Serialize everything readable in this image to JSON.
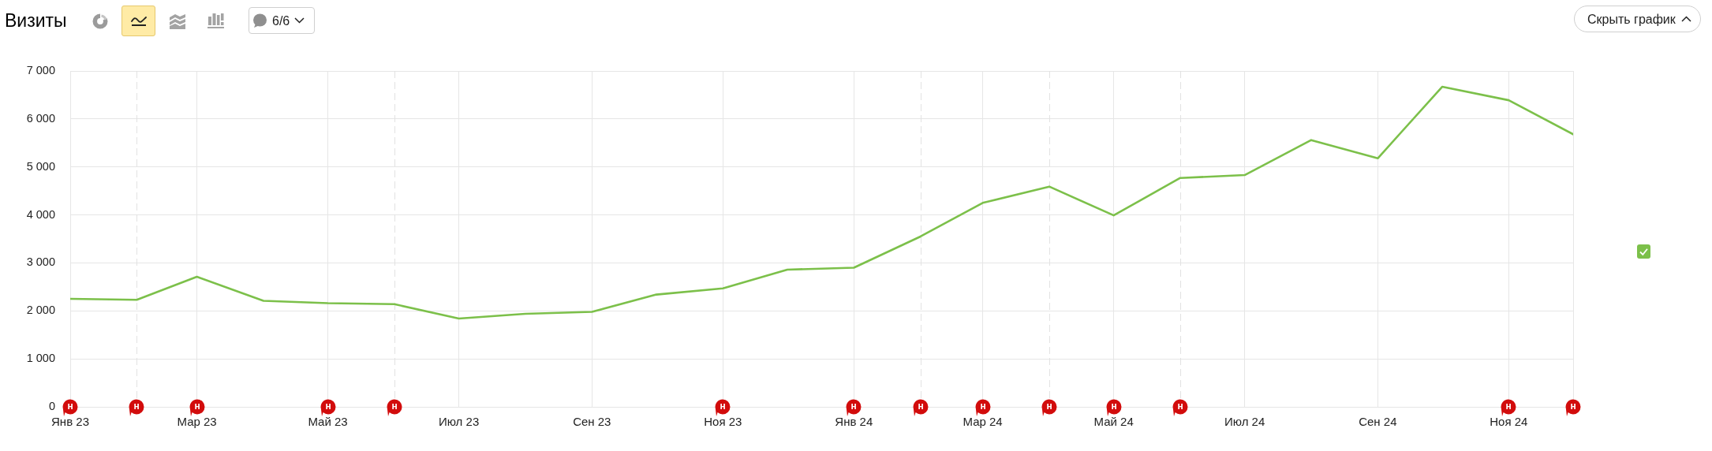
{
  "chart_data": {
    "type": "line",
    "title": "Визиты",
    "x": [
      "2023-01",
      "2023-02",
      "2023-03",
      "2023-04",
      "2023-05",
      "2023-06",
      "2023-07",
      "2023-08",
      "2023-09",
      "2023-10",
      "2023-11",
      "2023-12",
      "2024-01",
      "2024-02",
      "2024-03",
      "2024-04",
      "2024-05",
      "2024-06",
      "2024-07",
      "2024-08",
      "2024-09",
      "2024-10",
      "2024-11",
      "2024-12"
    ],
    "series": [
      {
        "color": "#7cc04a",
        "values": [
          2250,
          2230,
          2710,
          2210,
          2160,
          2140,
          1840,
          1940,
          1980,
          2340,
          2470,
          2860,
          2900,
          3550,
          4250,
          4590,
          3990,
          4770,
          4830,
          5560,
          5180,
          6670,
          6390,
          5680
        ]
      }
    ],
    "xlim": [
      "2023-01",
      "2024-12"
    ],
    "xticks": [
      {
        "value": "2023-01",
        "label": "Янв 23"
      },
      {
        "value": "2023-03",
        "label": "Мар 23"
      },
      {
        "value": "2023-05",
        "label": "Май 23"
      },
      {
        "value": "2023-07",
        "label": "Июл 23"
      },
      {
        "value": "2023-09",
        "label": "Сен 23"
      },
      {
        "value": "2023-11",
        "label": "Ноя 23"
      },
      {
        "value": "2024-01",
        "label": "Янв 24"
      },
      {
        "value": "2024-03",
        "label": "Мар 24"
      },
      {
        "value": "2024-05",
        "label": "Май 24"
      },
      {
        "value": "2024-07",
        "label": "Июл 24"
      },
      {
        "value": "2024-09",
        "label": "Сен 24"
      },
      {
        "value": "2024-11",
        "label": "Ноя 24"
      }
    ],
    "ylim": [
      0,
      7000
    ],
    "yticks": [
      0,
      {
        "value": 1000,
        "label": "1 000"
      },
      {
        "value": 2000,
        "label": "2 000"
      },
      {
        "value": 3000,
        "label": "3 000"
      },
      {
        "value": 4000,
        "label": "4 000"
      },
      {
        "value": 5000,
        "label": "5 000"
      },
      {
        "value": 6000,
        "label": "6 000"
      },
      {
        "value": 7000,
        "label": "7 000"
      }
    ],
    "grid": true,
    "marker": "none",
    "line_style": "solid",
    "ref_lines": [
      {
        "axis": "x",
        "value": "2023-02",
        "line_style": "dashed",
        "color": "#e2e2e2"
      },
      {
        "axis": "x",
        "value": "2023-06",
        "line_style": "dashed",
        "color": "#e2e2e2"
      },
      {
        "axis": "x",
        "value": "2024-02",
        "line_style": "dashed",
        "color": "#e2e2e2"
      },
      {
        "axis": "x",
        "value": "2024-04",
        "line_style": "dashed",
        "color": "#e2e2e2"
      },
      {
        "axis": "x",
        "value": "2024-06",
        "line_style": "dashed",
        "color": "#e2e2e2"
      }
    ],
    "annotations": [
      "6/6",
      "Скрыть график",
      {
        "text": "н",
        "x": "2023-01",
        "y": 0
      },
      {
        "text": "н",
        "x": "2023-02",
        "y": 0
      },
      {
        "text": "н",
        "x": "2023-03",
        "y": 0
      },
      {
        "text": "н",
        "x": "2023-05",
        "y": 0
      },
      {
        "text": "н",
        "x": "2023-06",
        "y": 0
      },
      {
        "text": "н",
        "x": "2023-11",
        "y": 0
      },
      {
        "text": "н",
        "x": "2024-01",
        "y": 0
      },
      {
        "text": "н",
        "x": "2024-02",
        "y": 0
      },
      {
        "text": "н",
        "x": "2024-03",
        "y": 0
      },
      {
        "text": "н",
        "x": "2024-04",
        "y": 0
      },
      {
        "text": "н",
        "x": "2024-05",
        "y": 0
      },
      {
        "text": "н",
        "x": "2024-06",
        "y": 0
      },
      {
        "text": "н",
        "x": "2024-11",
        "y": 0
      },
      {
        "text": "н",
        "x": "2024-12",
        "y": 0
      }
    ]
  }
}
